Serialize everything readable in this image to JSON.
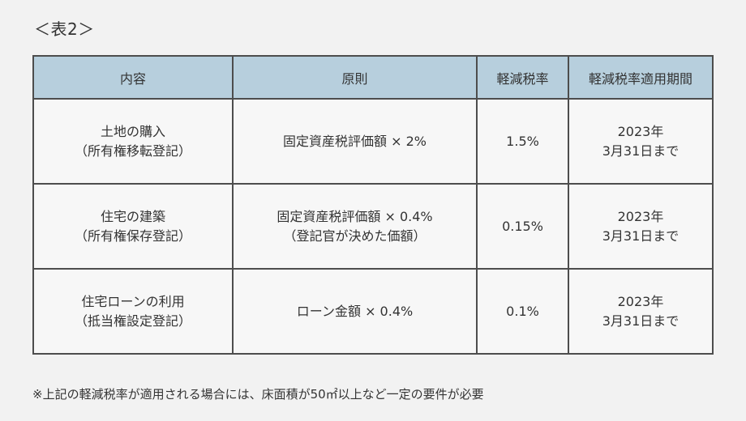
{
  "caption": "＜表2＞",
  "table": {
    "headers": [
      "内容",
      "原則",
      "軽減税率",
      "軽減税率適用期間"
    ],
    "rows": [
      {
        "content": [
          "土地の購入",
          "（所有権移転登記）"
        ],
        "principle": [
          "固定資産税評価額 × 2%"
        ],
        "reduced_rate": "1.5%",
        "period": [
          "2023年",
          "3月31日まで"
        ]
      },
      {
        "content": [
          "住宅の建築",
          "（所有権保存登記）"
        ],
        "principle": [
          "固定資産税評価額 × 0.4%",
          "（登記官が決めた価額）"
        ],
        "reduced_rate": "0.15%",
        "period": [
          "2023年",
          "3月31日まで"
        ]
      },
      {
        "content": [
          "住宅ローンの利用",
          "（抵当権設定登記）"
        ],
        "principle": [
          "ローン金額 × 0.4%"
        ],
        "reduced_rate": "0.1%",
        "period": [
          "2023年",
          "3月31日まで"
        ]
      }
    ]
  },
  "footnote": "※上記の軽減税率が適用される場合には、床面積が50㎡以上など一定の要件が必要"
}
